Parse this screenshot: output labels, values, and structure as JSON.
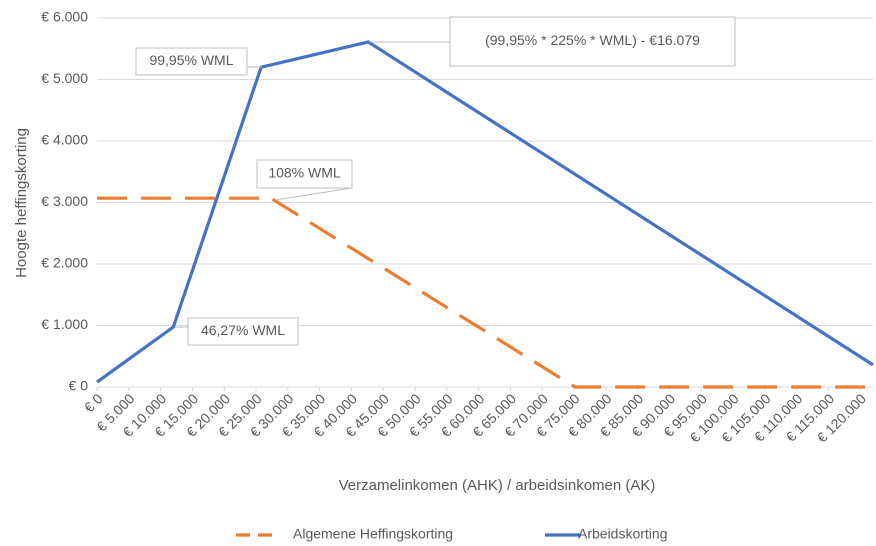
{
  "chart_data": {
    "type": "line",
    "xlabel": "Verzamelinkomen (AHK) / arbeidsinkomen (AK)",
    "ylabel": "Hoogte heffingskorting",
    "xlim": [
      0,
      122000
    ],
    "ylim": [
      0,
      6000
    ],
    "xticks": [
      {
        "value": 0,
        "label": "€ 0"
      },
      {
        "value": 5000,
        "label": "€ 5.000"
      },
      {
        "value": 10000,
        "label": "€ 10.000"
      },
      {
        "value": 15000,
        "label": "€ 15.000"
      },
      {
        "value": 20000,
        "label": "€ 20.000"
      },
      {
        "value": 25000,
        "label": "€ 25.000"
      },
      {
        "value": 30000,
        "label": "€ 30.000"
      },
      {
        "value": 35000,
        "label": "€ 35.000"
      },
      {
        "value": 40000,
        "label": "€ 40.000"
      },
      {
        "value": 45000,
        "label": "€ 45.000"
      },
      {
        "value": 50000,
        "label": "€ 50.000"
      },
      {
        "value": 55000,
        "label": "€ 55.000"
      },
      {
        "value": 60000,
        "label": "€ 60.000"
      },
      {
        "value": 65000,
        "label": "€ 65.000"
      },
      {
        "value": 70000,
        "label": "€ 70.000"
      },
      {
        "value": 75000,
        "label": "€ 75.000"
      },
      {
        "value": 80000,
        "label": "€ 80.000"
      },
      {
        "value": 85000,
        "label": "€ 85.000"
      },
      {
        "value": 90000,
        "label": "€ 90.000"
      },
      {
        "value": 95000,
        "label": "€ 95.000"
      },
      {
        "value": 100000,
        "label": "€ 100.000"
      },
      {
        "value": 105000,
        "label": "€ 105.000"
      },
      {
        "value": 110000,
        "label": "€ 110.000"
      },
      {
        "value": 115000,
        "label": "€ 115.000"
      },
      {
        "value": 120000,
        "label": "€ 120.000"
      }
    ],
    "yticks": [
      {
        "value": 0,
        "label": "€ 0"
      },
      {
        "value": 1000,
        "label": "€ 1.000"
      },
      {
        "value": 2000,
        "label": "€ 2.000"
      },
      {
        "value": 3000,
        "label": "€ 3.000"
      },
      {
        "value": 4000,
        "label": "€ 4.000"
      },
      {
        "value": 5000,
        "label": "€ 5.000"
      },
      {
        "value": 6000,
        "label": "€ 6.000"
      }
    ],
    "grid": true,
    "series": [
      {
        "name": "Algemene Heffingskorting",
        "color": "#ed7d31",
        "dashed": true,
        "x": [
          0,
          27350,
          75150,
          122000
        ],
        "values": [
          3070,
          3070,
          0,
          0
        ]
      },
      {
        "name": "Arbeidskorting",
        "color": "#4472c4",
        "dashed": false,
        "x": [
          0,
          12000,
          25800,
          42650,
          122000
        ],
        "values": [
          80,
          975,
          5200,
          5610,
          360
        ]
      }
    ],
    "annotations": [
      "99,95% WML",
      "(99,95% * 225% * WML) - €16.079",
      "108% WML",
      "46,27% WML"
    ],
    "legend": "bottom"
  }
}
